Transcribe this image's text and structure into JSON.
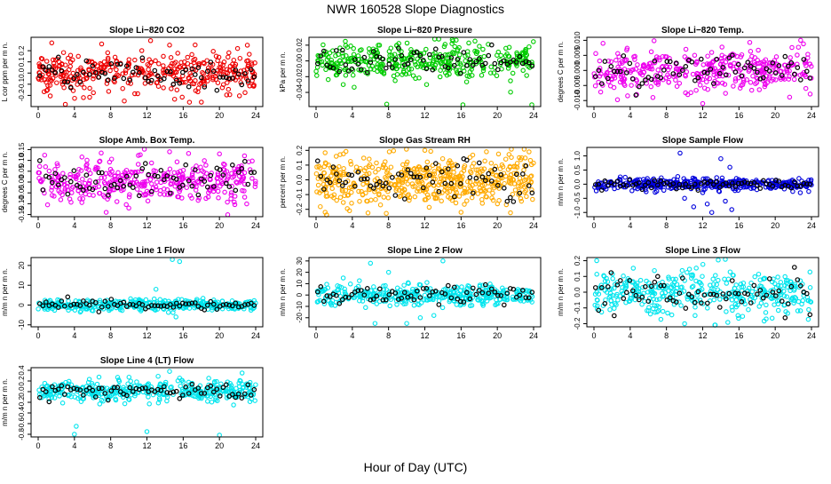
{
  "title": "NWR  160528  Slope Diagnostics",
  "xlabel": "Hour of Day (UTC)",
  "chart_data": [
    {
      "type": "scatter",
      "title": "Slope Li−820 CO2",
      "ylabel": "L cor ppm per m n.",
      "color": "#ee0000",
      "xlim": [
        0,
        24
      ],
      "xticks": [
        0,
        4,
        8,
        12,
        16,
        20,
        24
      ],
      "ylim": [
        -0.3,
        0.32
      ],
      "yticks": [
        -0.2,
        -0.1,
        0.0,
        0.1,
        0.2
      ],
      "ytick_labels": [
        "-0.2",
        "-0.1",
        "0.0",
        "0.1",
        "0.2"
      ],
      "spread": 0.09,
      "n": 380,
      "black_n": 70,
      "outliers": [
        [
          1.5,
          0.27
        ],
        [
          3.0,
          -0.28
        ],
        [
          7.0,
          0.26
        ],
        [
          9.5,
          -0.25
        ],
        [
          12.4,
          0.29
        ],
        [
          14.5,
          0.25
        ],
        [
          18.0,
          -0.26
        ],
        [
          22.0,
          0.22
        ],
        [
          5.0,
          -0.22
        ]
      ]
    },
    {
      "type": "scatter",
      "title": "Slope Li−820 Pressure",
      "ylabel": "kPa per m n.",
      "color": "#00cc00",
      "xlim": [
        0,
        24
      ],
      "xticks": [
        0,
        4,
        8,
        12,
        16,
        20,
        24
      ],
      "ylim": [
        -0.058,
        0.03
      ],
      "yticks": [
        -0.04,
        -0.02,
        0.0,
        0.02
      ],
      "ytick_labels": [
        "-0.04",
        "-0.02",
        "0.00",
        "0.02"
      ],
      "spread": 0.011,
      "n": 380,
      "black_n": 70,
      "outliers": [
        [
          3.0,
          -0.03
        ],
        [
          7.8,
          -0.055
        ],
        [
          12.2,
          -0.03
        ],
        [
          16.2,
          -0.056
        ],
        [
          23.8,
          -0.057
        ],
        [
          7.0,
          0.02
        ],
        [
          15.0,
          0.022
        ]
      ]
    },
    {
      "type": "scatter",
      "title": "Slope Li−820 Temp.",
      "ylabel": "degrees C per m n.",
      "color": "#ee00ee",
      "xlim": [
        0,
        24
      ],
      "xticks": [
        0,
        4,
        8,
        12,
        16,
        20,
        24
      ],
      "ylim": [
        -0.012,
        0.011
      ],
      "yticks": [
        -0.01,
        -0.005,
        0.0,
        0.005,
        0.01
      ],
      "ytick_labels": [
        "-0.010",
        "-0.005",
        "0.000",
        "0.005",
        "0.010"
      ],
      "spread": 0.0033,
      "n": 380,
      "black_n": 70,
      "outliers": [
        [
          1.0,
          0.009
        ],
        [
          12.0,
          -0.011
        ],
        [
          22.8,
          0.01
        ],
        [
          6.5,
          -0.009
        ]
      ]
    },
    {
      "type": "scatter",
      "title": "Slope Amb. Box Temp.",
      "ylabel": "degrees C per m n.",
      "color": "#ee00ee",
      "xlim": [
        0,
        24
      ],
      "xticks": [
        0,
        4,
        8,
        12,
        16,
        20,
        24
      ],
      "ylim": [
        -0.16,
        0.16
      ],
      "yticks": [
        -0.15,
        -0.1,
        -0.05,
        0.0,
        0.05,
        0.1,
        0.15
      ],
      "ytick_labels": [
        "-0.15",
        "-0.10",
        "-0.05",
        "0.00",
        "0.05",
        "0.10",
        "0.15"
      ],
      "spread": 0.05,
      "n": 380,
      "black_n": 70,
      "outliers": [
        [
          7.5,
          -0.14
        ],
        [
          14.5,
          0.14
        ],
        [
          20.0,
          0.13
        ],
        [
          10.0,
          -0.12
        ]
      ]
    },
    {
      "type": "scatter",
      "title": "Slope Gas Stream RH",
      "ylabel": "percent per m n.",
      "color": "#ffaa00",
      "xlim": [
        0,
        24
      ],
      "xticks": [
        0,
        4,
        8,
        12,
        16,
        20,
        24
      ],
      "ylim": [
        -0.25,
        0.22
      ],
      "yticks": [
        -0.2,
        -0.1,
        0.0,
        0.1,
        0.2
      ],
      "ytick_labels": [
        "-0.2",
        "-0.1",
        "0.0",
        "0.1",
        "0.2"
      ],
      "spread": 0.085,
      "n": 520,
      "black_n": 70,
      "outliers": [
        [
          1.0,
          -0.22
        ],
        [
          12.0,
          0.2
        ],
        [
          16.0,
          -0.22
        ],
        [
          23.5,
          0.19
        ]
      ]
    },
    {
      "type": "scatter",
      "title": "Slope Sample Flow",
      "ylabel": "m/m n per m n.",
      "color": "#0000dd",
      "xlim": [
        0,
        24
      ],
      "xticks": [
        0,
        4,
        8,
        12,
        16,
        20,
        24
      ],
      "ylim": [
        -1.15,
        1.3
      ],
      "yticks": [
        -1.0,
        -0.5,
        0.0,
        0.5,
        1.0
      ],
      "ytick_labels": [
        "-1.0",
        "-0.5",
        "0.0",
        "0.5",
        "1.0"
      ],
      "spread": 0.1,
      "n": 380,
      "black_n": 70,
      "outliers": [
        [
          10.0,
          -0.5
        ],
        [
          11.0,
          -0.8
        ],
        [
          12.5,
          -0.7
        ],
        [
          13.0,
          -1.0
        ],
        [
          14.5,
          -0.6
        ],
        [
          15.2,
          -0.9
        ],
        [
          9.5,
          1.1
        ],
        [
          14.0,
          0.9
        ],
        [
          12.0,
          -0.3
        ],
        [
          15.0,
          0.6
        ]
      ]
    },
    {
      "type": "scatter",
      "title": "Slope Line 1 Flow",
      "ylabel": "m/m n per m n.",
      "color": "#00e5ee",
      "xlim": [
        0,
        24
      ],
      "xticks": [
        0,
        4,
        8,
        12,
        16,
        20,
        24
      ],
      "ylim": [
        -11,
        24
      ],
      "yticks": [
        -10,
        0,
        10,
        20
      ],
      "ytick_labels": [
        "-10",
        "0",
        "10",
        "20"
      ],
      "spread": 1.4,
      "n": 380,
      "black_n": 70,
      "outliers": [
        [
          14.8,
          23
        ],
        [
          15.6,
          22
        ],
        [
          13.0,
          8
        ],
        [
          15.2,
          -6
        ]
      ]
    },
    {
      "type": "scatter",
      "title": "Slope Line 2 Flow",
      "ylabel": "m/m n per m n.",
      "color": "#00e5ee",
      "xlim": [
        0,
        24
      ],
      "xticks": [
        0,
        4,
        8,
        12,
        16,
        20,
        24
      ],
      "ylim": [
        -28,
        33
      ],
      "yticks": [
        -20,
        -10,
        0,
        10,
        20,
        30
      ],
      "ytick_labels": [
        "-20",
        "-10",
        "0",
        "10",
        "20",
        "30"
      ],
      "spread": 4.5,
      "n": 380,
      "black_n": 70,
      "outliers": [
        [
          6.0,
          28
        ],
        [
          6.5,
          -25
        ],
        [
          8.0,
          20
        ],
        [
          14.0,
          30
        ],
        [
          10.0,
          -25
        ],
        [
          11.5,
          -20
        ],
        [
          13.0,
          -18
        ],
        [
          3.0,
          15
        ]
      ]
    },
    {
      "type": "scatter",
      "title": "Slope Line 3 Flow",
      "ylabel": "m/m n per m n.",
      "color": "#00e5ee",
      "xlim": [
        0,
        24
      ],
      "xticks": [
        0,
        4,
        8,
        12,
        16,
        20,
        24
      ],
      "ylim": [
        -0.22,
        0.22
      ],
      "yticks": [
        -0.2,
        -0.1,
        0.0,
        0.1,
        0.2
      ],
      "ytick_labels": [
        "-0.2",
        "-0.1",
        "0.0",
        "0.1",
        "0.2"
      ],
      "spread": 0.065,
      "n": 380,
      "black_n": 70,
      "outliers": [
        [
          0.3,
          0.2
        ],
        [
          10.0,
          -0.2
        ],
        [
          14.5,
          0.21
        ],
        [
          19.0,
          -0.17
        ]
      ]
    },
    {
      "type": "scatter",
      "title": "Slope Line 4 (LT) Flow",
      "ylabel": "m/m n per m n.",
      "color": "#00e5ee",
      "xlim": [
        0,
        24
      ],
      "xticks": [
        0,
        4,
        8,
        12,
        16,
        20,
        24
      ],
      "ylim": [
        -0.85,
        0.45
      ],
      "yticks": [
        -0.8,
        -0.6,
        -0.4,
        -0.2,
        0.0,
        0.2,
        0.4
      ],
      "ytick_labels": [
        "-0.8",
        "-0.6",
        "-0.4",
        "-0.2",
        "0.0",
        "0.2",
        "0.4"
      ],
      "spread": 0.1,
      "n": 380,
      "black_n": 70,
      "outliers": [
        [
          4.0,
          -0.8
        ],
        [
          4.2,
          -0.65
        ],
        [
          12.0,
          -0.75
        ],
        [
          20.0,
          -0.82
        ],
        [
          14.5,
          0.38
        ],
        [
          22.5,
          0.35
        ]
      ]
    }
  ]
}
